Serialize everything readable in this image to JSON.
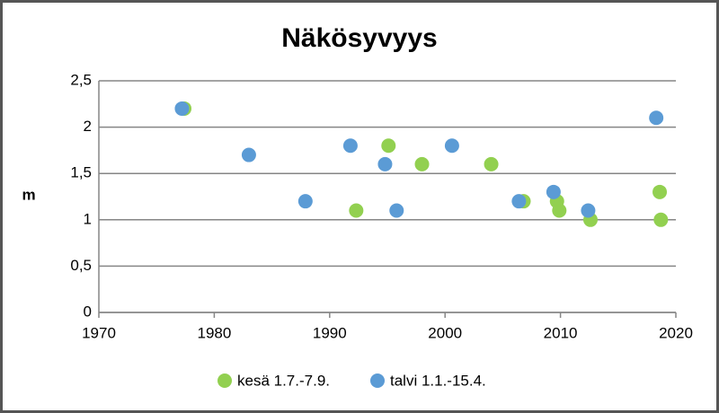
{
  "chart_data": {
    "type": "scatter",
    "title": "Näkösyvyys",
    "y_label": "m",
    "xlim": [
      1970,
      2020
    ],
    "xticks": [
      1970,
      1980,
      1990,
      2000,
      2010,
      2020
    ],
    "ylim": [
      0,
      2.5
    ],
    "yticks": [
      0,
      {
        "value": 0.5,
        "label": "0,5"
      },
      1,
      {
        "value": 1.5,
        "label": "1,5"
      },
      2,
      {
        "value": 2.5,
        "label": "2,5"
      }
    ],
    "grid": true,
    "legend": "bottom",
    "series": [
      {
        "name": "kesä 1.7.-7.9.",
        "color": "#92d050",
        "x": [
          1977.4,
          1992.3,
          1995.1,
          1998.0,
          2004.0,
          2006.8,
          2009.7,
          2009.9,
          2012.6,
          2018.6,
          2018.7
        ],
        "values": [
          2.2,
          1.1,
          1.8,
          1.6,
          1.6,
          1.2,
          1.2,
          1.1,
          1.0,
          1.3,
          1.0
        ]
      },
      {
        "name": "talvi 1.1.-15.4.",
        "color": "#5b9bd5",
        "x": [
          1977.2,
          1983.0,
          1987.9,
          1991.8,
          1994.8,
          1995.8,
          2000.6,
          2006.4,
          2009.4,
          2012.4,
          2018.3
        ],
        "values": [
          2.2,
          1.7,
          1.2,
          1.8,
          1.6,
          1.1,
          1.8,
          1.2,
          1.3,
          1.1,
          2.1
        ]
      }
    ]
  }
}
